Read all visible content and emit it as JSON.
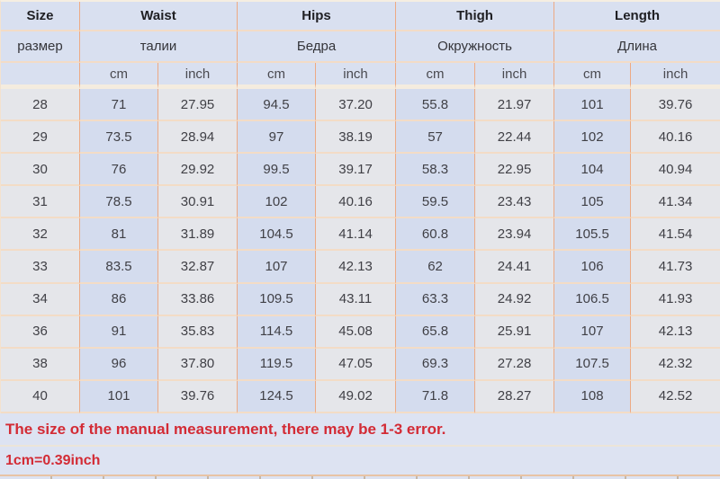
{
  "table": {
    "header_en": [
      "Size",
      "Waist",
      "Hips",
      "Thigh",
      "Length"
    ],
    "header_ru": [
      "размер",
      "талии",
      "Бедра",
      "Окружность",
      "Длина"
    ],
    "units": [
      "cm",
      "inch",
      "cm",
      "inch",
      "cm",
      "inch",
      "cm",
      "inch"
    ],
    "rows": [
      [
        "28",
        "71",
        "27.95",
        "94.5",
        "37.20",
        "55.8",
        "21.97",
        "101",
        "39.76"
      ],
      [
        "29",
        "73.5",
        "28.94",
        "97",
        "38.19",
        "57",
        "22.44",
        "102",
        "40.16"
      ],
      [
        "30",
        "76",
        "29.92",
        "99.5",
        "39.17",
        "58.3",
        "22.95",
        "104",
        "40.94"
      ],
      [
        "31",
        "78.5",
        "30.91",
        "102",
        "40.16",
        "59.5",
        "23.43",
        "105",
        "41.34"
      ],
      [
        "32",
        "81",
        "31.89",
        "104.5",
        "41.14",
        "60.8",
        "23.94",
        "105.5",
        "41.54"
      ],
      [
        "33",
        "83.5",
        "32.87",
        "107",
        "42.13",
        "62",
        "24.41",
        "106",
        "41.73"
      ],
      [
        "34",
        "86",
        "33.86",
        "109.5",
        "43.11",
        "63.3",
        "24.92",
        "106.5",
        "41.93"
      ],
      [
        "36",
        "91",
        "35.83",
        "114.5",
        "45.08",
        "65.8",
        "25.91",
        "107",
        "42.13"
      ],
      [
        "38",
        "96",
        "37.80",
        "119.5",
        "47.05",
        "69.3",
        "27.28",
        "107.5",
        "42.32"
      ],
      [
        "40",
        "101",
        "39.76",
        "124.5",
        "49.02",
        "71.8",
        "28.27",
        "108",
        "42.52"
      ]
    ]
  },
  "notes": {
    "measurement_note": "The size of the manual measurement, there may be 1-3 error.",
    "conversion_note": "1cm=0.39inch"
  },
  "colors": {
    "header_bg": "#d9e0f0",
    "cm_column_bg": "#d4dcee",
    "inch_column_bg": "#e5e6ea",
    "note_bg": "#dde3f2",
    "note_text": "#d32b35",
    "grid_vertical": "#edaa84",
    "grid_horizontal": "#f3dcc6"
  }
}
